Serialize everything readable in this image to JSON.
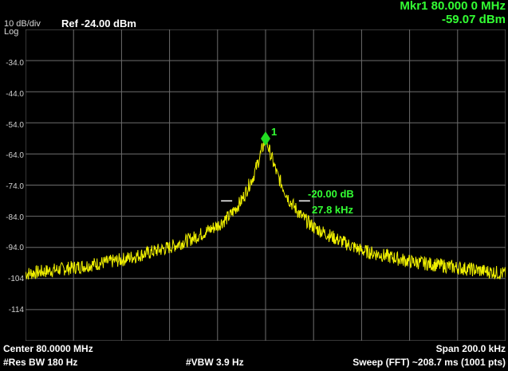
{
  "header": {
    "scale": "10 dB/div",
    "scale_mode": "Log",
    "ref_level": "Ref -24.00 dBm",
    "marker_freq": "Mkr1 80.000 0 MHz",
    "marker_level": "-59.07 dBm"
  },
  "y_axis_labels": [
    "-34.0",
    "-44.0",
    "-54.0",
    "-64.0",
    "-74.0",
    "-84.0",
    "-94.0",
    "-104",
    "-114"
  ],
  "marker": {
    "number": "1"
  },
  "annotation": {
    "delta_db": "-20.00 dB",
    "bandwidth": "27.8 kHz"
  },
  "footer": {
    "center": "Center 80.0000 MHz",
    "span": "Span 200.0 kHz",
    "res_bw": "#Res BW 180 Hz",
    "vbw": "#VBW 3.9 Hz",
    "sweep": "Sweep (FFT)  ~208.7 ms (1001 pts)"
  },
  "colors": {
    "trace": "#f0f000",
    "marker": "#22dd22",
    "annotation": "#33ff33",
    "grid": "#6e6e6e"
  },
  "chart_data": {
    "type": "line",
    "ylim": [
      -124,
      -24
    ],
    "xlim": [
      79.9,
      80.1
    ],
    "x_unit": "MHz",
    "y_unit": "dBm",
    "series": [
      {
        "x": [
          79.9,
          79.92,
          79.94,
          79.96,
          79.97,
          79.98,
          79.985,
          79.99,
          79.995,
          80.0,
          80.005,
          80.01,
          80.015,
          80.02,
          80.03,
          80.04,
          80.06,
          80.08,
          80.1
        ],
        "values": [
          -102.5,
          -100.5,
          -98,
          -94,
          -91,
          -87,
          -84,
          -79,
          -71,
          -59.1,
          -71,
          -79,
          -84,
          -87.5,
          -91.5,
          -95,
          -98.5,
          -100.5,
          -102.5
        ]
      }
    ],
    "marker": {
      "x": 80.0,
      "y": -59.07
    },
    "ndb_points": [
      {
        "x": 79.9861,
        "y": -79.07
      },
      {
        "x": 80.0139,
        "y": -79.07
      }
    ]
  }
}
